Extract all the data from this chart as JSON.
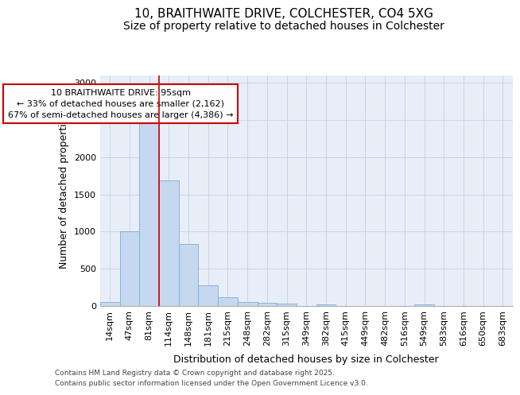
{
  "title_line1": "10, BRAITHWAITE DRIVE, COLCHESTER, CO4 5XG",
  "title_line2": "Size of property relative to detached houses in Colchester",
  "xlabel": "Distribution of detached houses by size in Colchester",
  "ylabel": "Number of detached properties",
  "bar_labels": [
    "14sqm",
    "47sqm",
    "81sqm",
    "114sqm",
    "148sqm",
    "181sqm",
    "215sqm",
    "248sqm",
    "282sqm",
    "315sqm",
    "349sqm",
    "382sqm",
    "415sqm",
    "449sqm",
    "482sqm",
    "516sqm",
    "549sqm",
    "583sqm",
    "616sqm",
    "650sqm",
    "683sqm"
  ],
  "bar_values": [
    55,
    1000,
    2500,
    1690,
    830,
    275,
    120,
    55,
    45,
    35,
    0,
    20,
    0,
    0,
    0,
    0,
    20,
    0,
    0,
    0,
    0
  ],
  "bar_color": "#c5d8f0",
  "bar_edge_color": "#7aaed4",
  "grid_color": "#c8d4e8",
  "background_color": "#e8eef8",
  "property_line_x": 2.0,
  "annotation_text": "10 BRAITHWAITE DRIVE: 95sqm\n← 33% of detached houses are smaller (2,162)\n67% of semi-detached houses are larger (4,386) →",
  "annotation_box_color": "#cc0000",
  "ylim": [
    0,
    3100
  ],
  "yticks": [
    0,
    500,
    1000,
    1500,
    2000,
    2500,
    3000
  ],
  "footer_line1": "Contains HM Land Registry data © Crown copyright and database right 2025.",
  "footer_line2": "Contains public sector information licensed under the Open Government Licence v3.0.",
  "title_fontsize": 11,
  "subtitle_fontsize": 10,
  "axis_label_fontsize": 9,
  "tick_fontsize": 8,
  "annotation_fontsize": 8,
  "footer_fontsize": 6.5
}
